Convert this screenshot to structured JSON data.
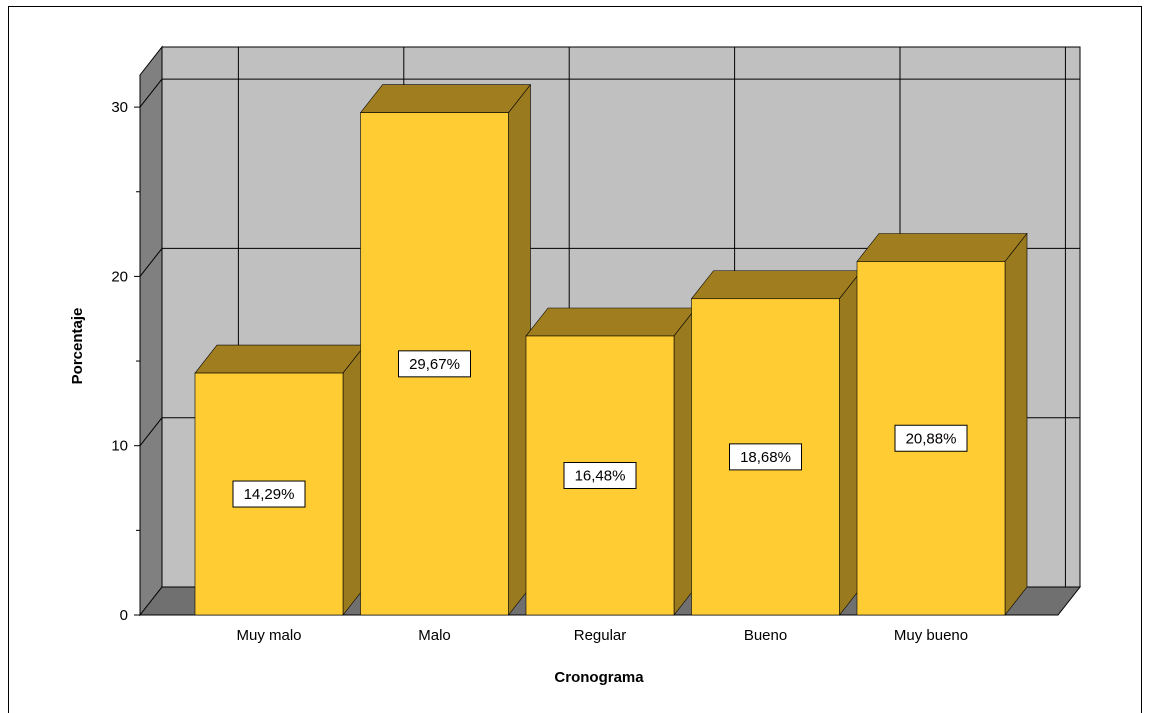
{
  "chart_data": {
    "type": "bar",
    "title": "",
    "xlabel": "Cronograma",
    "ylabel": "Porcentaje",
    "categories": [
      "Muy malo",
      "Malo",
      "Regular",
      "Bueno",
      "Muy bueno"
    ],
    "values": [
      14.29,
      29.67,
      16.48,
      18.68,
      20.88
    ],
    "data_labels": [
      "14,29%",
      "29,67%",
      "16,48%",
      "18,68%",
      "20,88%"
    ],
    "yticks": [
      "0",
      "10",
      "20",
      "30"
    ],
    "ylim": [
      0,
      32.5
    ],
    "grid": true,
    "three_d": true,
    "colors": {
      "bar_front": "#FFCC33",
      "bar_top": "#A07E20",
      "bar_side": "#9A7A1E",
      "wall": "#C0C0C0",
      "wall_side": "#808080",
      "floor": "#707070",
      "grid": "#000000"
    }
  }
}
